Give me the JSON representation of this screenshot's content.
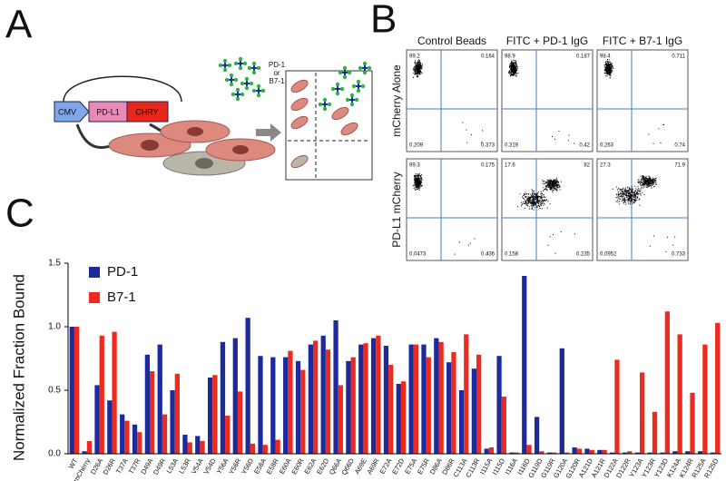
{
  "panel_labels": [
    "A",
    "B",
    "C"
  ],
  "diagram": {
    "plasmid": [
      "CMV",
      "PD-L1",
      "CHRY"
    ],
    "ligand_label": [
      "PD-1",
      "or",
      "B7-1"
    ]
  },
  "flow": {
    "columns": [
      "Control Beads",
      "FITC + PD-1 IgG",
      "FITC + B7-1 IgG"
    ],
    "rows": [
      "mCherry Alone",
      "PD-L1 mCherry"
    ],
    "plots": [
      [
        "99.2",
        "0.164",
        "0.209",
        "0.373"
      ],
      [
        "98.9",
        "0.187",
        "0.319",
        "0.42"
      ],
      [
        "98.4",
        "0.711",
        "0.263",
        "0.74"
      ],
      [
        "99.3",
        "0.175",
        "0.0473",
        "0.436"
      ],
      [
        "17.6",
        "82",
        "0.158",
        "0.235"
      ],
      [
        "27.3",
        "71.9",
        "0.0952",
        "0.733"
      ]
    ]
  },
  "chart_data": {
    "type": "bar",
    "y_label": "Normalized Fraction Bound",
    "categories": [
      "WT",
      "mCherry",
      "D26A",
      "D26R",
      "T37A",
      "T37R",
      "D49A",
      "D49R",
      "L53A",
      "L53R",
      "V54A",
      "V54D",
      "Y56A",
      "Y56R",
      "Y56D",
      "E58A",
      "E58R",
      "E60A",
      "E60R",
      "E62A",
      "E62D",
      "Q66A",
      "Q66D",
      "A69E",
      "A69R",
      "E72A",
      "E72D",
      "E75A",
      "E75R",
      "D86A",
      "D86R",
      "C113A",
      "C113R",
      "I115A",
      "I115D",
      "I116A",
      "I116D",
      "G119D",
      "G119R",
      "G120A",
      "G120R",
      "A121D",
      "A121R",
      "D122A",
      "D122R",
      "Y123A",
      "Y123R",
      "Y123D",
      "K124A",
      "K124R",
      "R125A",
      "R125D"
    ],
    "series": [
      {
        "name": "PD-1",
        "color": "#1c2a9c",
        "values": [
          1.0,
          0.02,
          0.54,
          0.42,
          0.31,
          0.23,
          0.78,
          0.86,
          0.5,
          0.15,
          0.14,
          0.6,
          0.88,
          0.91,
          1.07,
          0.77,
          0.76,
          0.76,
          0.73,
          0.86,
          0.93,
          1.05,
          0.73,
          0.86,
          0.91,
          0.85,
          0.55,
          0.86,
          0.86,
          0.91,
          0.72,
          0.5,
          0.67,
          0.04,
          0.77,
          0.01,
          1.4,
          0.29,
          0.01,
          0.83,
          0.05,
          0.04,
          0.03,
          0.01,
          0.01,
          0.01,
          0.01,
          0.01,
          0.02,
          0.02,
          0.02,
          0.01
        ]
      },
      {
        "name": "B7-1",
        "color": "#ee2a1e",
        "values": [
          1.0,
          0.1,
          0.93,
          0.96,
          0.26,
          0.17,
          0.65,
          0.31,
          0.63,
          0.09,
          0.1,
          0.62,
          0.3,
          0.49,
          0.08,
          0.07,
          0.11,
          0.81,
          0.66,
          0.89,
          0.82,
          0.54,
          0.76,
          0.87,
          0.93,
          0.7,
          0.57,
          0.86,
          0.76,
          0.88,
          0.8,
          0.94,
          0.78,
          0.05,
          0.45,
          0.01,
          0.07,
          0.02,
          0.01,
          0.01,
          0.04,
          0.03,
          0.03,
          0.74,
          0.02,
          0.64,
          0.33,
          1.12,
          0.94,
          0.48,
          0.86,
          1.03
        ]
      }
    ],
    "ylim": [
      0,
      1.5
    ],
    "yticks": [
      {
        "value": 0,
        "label": "0.0"
      },
      {
        "value": 0.5,
        "label": "0.5"
      },
      {
        "value": 1,
        "label": "1.0"
      },
      {
        "value": 1.5,
        "label": "1.5"
      }
    ],
    "legend": "upper-left"
  }
}
